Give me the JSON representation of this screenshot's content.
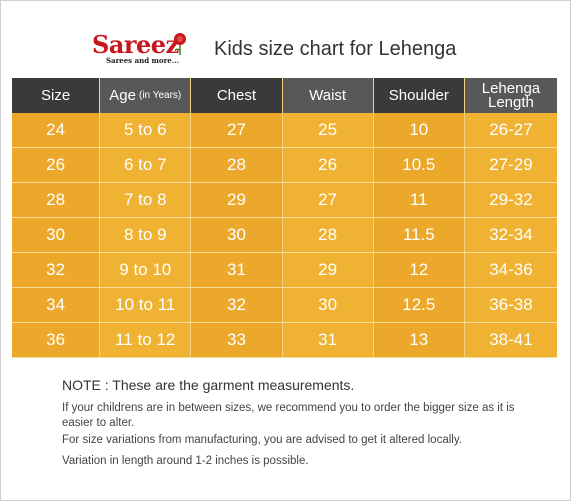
{
  "brand": {
    "name": "Sareez",
    "tagline": "Sarees and more..."
  },
  "title": "Kids size chart for Lehenga",
  "colors": {
    "header_dark": "#3a3a3a",
    "header_mid": "#585858",
    "cell_orange": "#eba82a",
    "cell_orange_alt": "#f0b232",
    "brand_red": "#c8161d"
  },
  "table": {
    "headers": [
      {
        "label": "Size"
      },
      {
        "label": "Age",
        "sub": "(in Years)"
      },
      {
        "label": "Chest"
      },
      {
        "label": "Waist"
      },
      {
        "label": "Shoulder"
      },
      {
        "label": "Lehenga Length"
      }
    ],
    "rows": [
      [
        "24",
        "5 to 6",
        "27",
        "25",
        "10",
        "26-27"
      ],
      [
        "26",
        "6 to 7",
        "28",
        "26",
        "10.5",
        "27-29"
      ],
      [
        "28",
        "7 to 8",
        "29",
        "27",
        "11",
        "29-32"
      ],
      [
        "30",
        "8 to 9",
        "30",
        "28",
        "11.5",
        "32-34"
      ],
      [
        "32",
        "9 to 10",
        "31",
        "29",
        "12",
        "34-36"
      ],
      [
        "34",
        "10 to 11",
        "32",
        "30",
        "12.5",
        "36-38"
      ],
      [
        "36",
        "11 to 12",
        "33",
        "31",
        "13",
        "38-41"
      ]
    ]
  },
  "notes": {
    "heading": "NOTE : These are the garment measurements.",
    "lines": [
      "If your childrens are in between sizes, we recommend you to order the bigger size as it is easier to alter.",
      "For size variations from manufacturing, you are advised to get it altered locally.",
      "Variation in length around 1-2 inches is possible."
    ]
  }
}
